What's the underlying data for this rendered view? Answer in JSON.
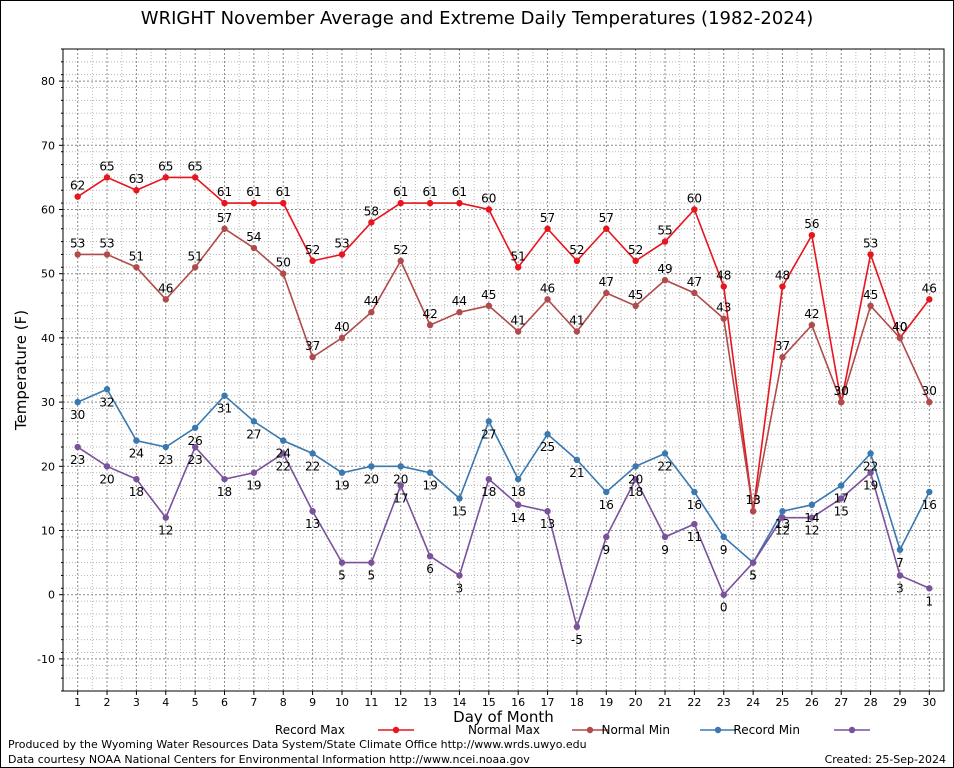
{
  "title": "WRIGHT November Average and Extreme Daily Temperatures (1982-2024)",
  "footer": {
    "line1": "Produced by the Wyoming Water Resources Data System/State Climate Office http://www.wrds.uwyo.edu",
    "line2": "Data courtesy NOAA National Centers for Environmental Information http://www.ncei.noaa.gov",
    "created": "Created: 25-Sep-2024"
  },
  "chart_data": {
    "type": "line",
    "title": "WRIGHT November Average and Extreme Daily Temperatures (1982-2024)",
    "xlabel": "Day of Month",
    "ylabel": "Temperature (F)",
    "x": [
      1,
      2,
      3,
      4,
      5,
      6,
      7,
      8,
      9,
      10,
      11,
      12,
      13,
      14,
      15,
      16,
      17,
      18,
      19,
      20,
      21,
      22,
      23,
      24,
      25,
      26,
      27,
      28,
      29,
      30
    ],
    "xlim": [
      0.5,
      30.5
    ],
    "ylim": [
      -15,
      85
    ],
    "yticks": [
      -10,
      0,
      10,
      20,
      30,
      40,
      50,
      60,
      70,
      80
    ],
    "grid": true,
    "legend_position": "bottom",
    "series": [
      {
        "name": "Record Max",
        "color": "#e8141e",
        "label_position": "above",
        "values": [
          62,
          65,
          63,
          65,
          65,
          61,
          61,
          61,
          52,
          53,
          58,
          61,
          61,
          61,
          60,
          51,
          57,
          52,
          57,
          52,
          55,
          60,
          48,
          13,
          48,
          56,
          30,
          53,
          40,
          46
        ]
      },
      {
        "name": "Normal Max",
        "color": "#b14a4a",
        "label_position": "above",
        "values": [
          53,
          53,
          51,
          46,
          51,
          57,
          54,
          50,
          37,
          40,
          44,
          52,
          42,
          44,
          45,
          41,
          46,
          41,
          47,
          45,
          49,
          47,
          43,
          13,
          37,
          42,
          30,
          45,
          40,
          30
        ]
      },
      {
        "name": "Normal Min",
        "color": "#3a78b0",
        "label_position": "below",
        "values": [
          30,
          32,
          24,
          23,
          26,
          31,
          27,
          24,
          22,
          19,
          20,
          20,
          19,
          15,
          27,
          18,
          25,
          21,
          16,
          20,
          22,
          16,
          9,
          5,
          13,
          14,
          17,
          22,
          7,
          16
        ]
      },
      {
        "name": "Record Min",
        "color": "#7a519b",
        "label_position": "below",
        "values": [
          23,
          20,
          18,
          12,
          23,
          18,
          19,
          22,
          13,
          5,
          5,
          17,
          6,
          3,
          18,
          14,
          13,
          -5,
          9,
          18,
          9,
          11,
          0,
          5,
          12,
          12,
          15,
          19,
          3,
          1
        ]
      }
    ]
  }
}
